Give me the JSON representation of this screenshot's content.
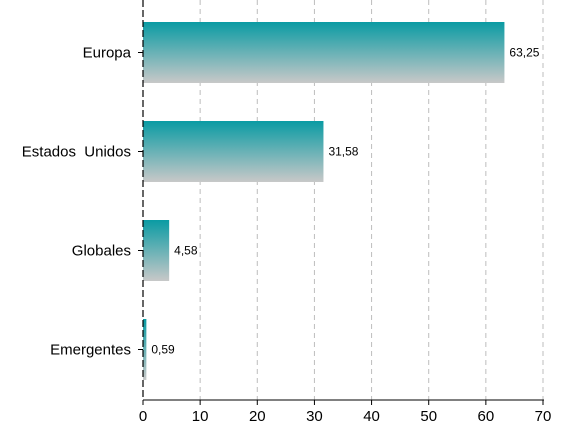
{
  "chart_data": {
    "type": "bar",
    "orientation": "horizontal",
    "categories": [
      "Europa",
      "Estados  Unidos",
      "Globales",
      "Emergentes"
    ],
    "values": [
      63.25,
      31.58,
      4.58,
      0.59
    ],
    "value_labels": [
      "63,25",
      "31,58",
      "4,58",
      "0,59"
    ],
    "xlim": [
      0,
      70
    ],
    "xticks": [
      0,
      10,
      20,
      30,
      40,
      50,
      60,
      70
    ],
    "xtick_labels": [
      "0",
      "10",
      "20",
      "30",
      "40",
      "50",
      "60",
      "70"
    ],
    "title": "",
    "xlabel": "",
    "ylabel": "",
    "grid": "vertical dashed",
    "colors": {
      "bar_top": "#0a9ba3",
      "bar_bottom": "#c8c8c8",
      "grid": "#bdbdbd",
      "axis": "#000000"
    }
  }
}
